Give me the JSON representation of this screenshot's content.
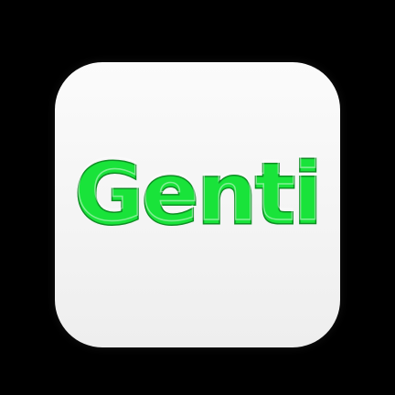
{
  "app_icon": {
    "name": "Genti",
    "wordmark_text": "Genti",
    "colors": {
      "background": "#000000",
      "tile": "#f4f4f4",
      "wordmark_fill": "#19e33a",
      "wordmark_outline": "#0e8f24"
    }
  }
}
